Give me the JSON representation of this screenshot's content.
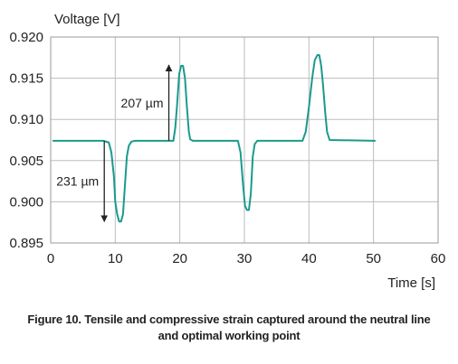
{
  "chart_data": {
    "type": "line",
    "title": "",
    "ylabel": "Voltage [V]",
    "xlabel": "Time [s]",
    "xlim": [
      0,
      60
    ],
    "ylim": [
      0.895,
      0.92
    ],
    "x_ticks": [
      "0",
      "10",
      "20",
      "30",
      "40",
      "50",
      "60"
    ],
    "y_ticks": [
      "0.920",
      "0.915",
      "0.910",
      "0.905",
      "0.900",
      "0.895"
    ],
    "grid": true,
    "series": [
      {
        "color": "#1a9a8e",
        "x": [
          0.4,
          8.2,
          9.0,
          9.4,
          9.8,
          10.0,
          10.3,
          10.6,
          10.9,
          11.2,
          11.5,
          11.8,
          12.1,
          12.5,
          13.0,
          19.0,
          19.3,
          19.6,
          19.9,
          20.2,
          20.5,
          20.8,
          21.1,
          21.4,
          21.6,
          22.0,
          29.0,
          29.4,
          29.8,
          30.1,
          30.4,
          30.7,
          31.0,
          31.3,
          31.6,
          32.0,
          39.0,
          39.5,
          40.0,
          40.5,
          40.9,
          41.3,
          41.6,
          41.9,
          42.2,
          42.5,
          42.8,
          43.2,
          50.2
        ],
        "y": [
          0.9074,
          0.9074,
          0.9072,
          0.906,
          0.903,
          0.9,
          0.8985,
          0.8976,
          0.8976,
          0.8985,
          0.902,
          0.9055,
          0.9068,
          0.9073,
          0.9074,
          0.9074,
          0.909,
          0.912,
          0.9155,
          0.9165,
          0.9165,
          0.915,
          0.9115,
          0.9085,
          0.9076,
          0.9074,
          0.9074,
          0.906,
          0.902,
          0.8995,
          0.899,
          0.899,
          0.901,
          0.9055,
          0.907,
          0.9074,
          0.9074,
          0.9085,
          0.9115,
          0.915,
          0.9172,
          0.9178,
          0.9178,
          0.9165,
          0.914,
          0.911,
          0.9085,
          0.9075,
          0.9074
        ]
      }
    ],
    "annotations": [
      {
        "text": "207 µm",
        "type": "arrow",
        "x": 18.3,
        "y_from": 0.9074,
        "y_to": 0.9166
      },
      {
        "text": "231 µm",
        "type": "arrow",
        "x": 8.3,
        "y_from": 0.9074,
        "y_to": 0.8976
      }
    ]
  },
  "caption": {
    "line1": "Figure 10. Tensile and compressive strain captured around the neutral line",
    "line2": "and optimal working point"
  }
}
